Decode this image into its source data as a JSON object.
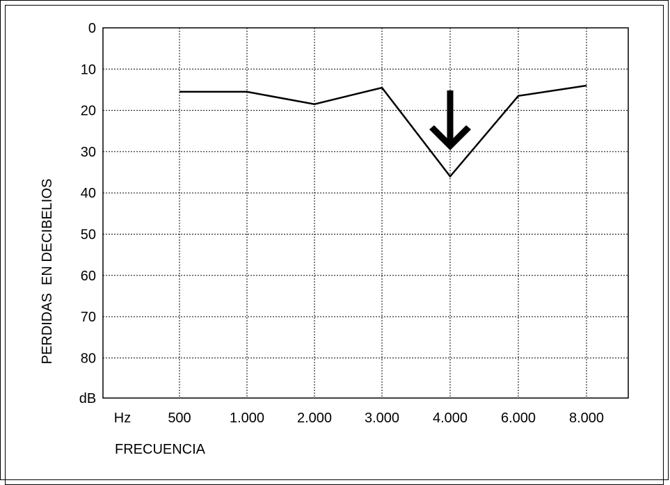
{
  "chart_data": {
    "type": "line",
    "ylabel": "PERDIDAS  EN DECIBELIOS",
    "xlabel": "FRECUENCIA",
    "x_unit_label": "Hz",
    "y_unit_label": "dB",
    "y_reversed": true,
    "ylim": [
      0,
      90
    ],
    "yticks": [
      "0",
      "10",
      "20",
      "30",
      "40",
      "50",
      "60",
      "70",
      "80"
    ],
    "categories": [
      "500",
      "1.000",
      "2.000",
      "3.000",
      "4.000",
      "6.000",
      "8.000"
    ],
    "series": [
      {
        "values": [
          15.5,
          15.5,
          18.5,
          14.5,
          36,
          16.5,
          14
        ]
      }
    ],
    "annotation": {
      "type": "down-arrow",
      "at_category": "4.000"
    },
    "grid": true,
    "grid_style": "dotted"
  }
}
